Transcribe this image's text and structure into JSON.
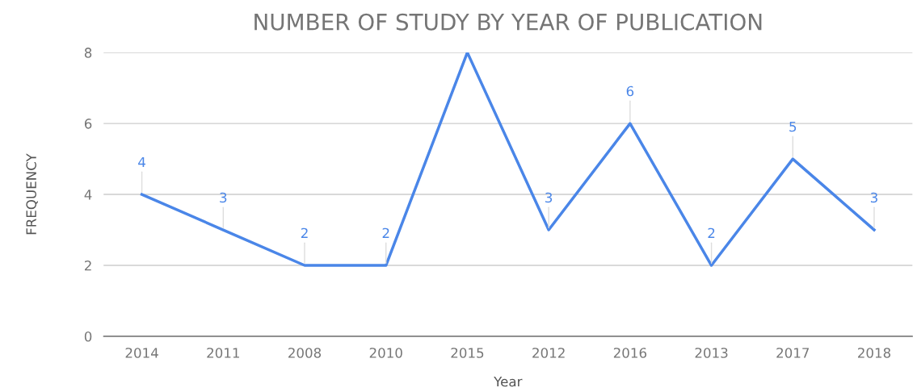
{
  "chart_data": {
    "type": "line",
    "title": "NUMBER OF STUDY BY YEAR OF PUBLICATION",
    "xlabel": "Year",
    "ylabel": "FREQUENCY",
    "categories": [
      "2014",
      "2011",
      "2008",
      "2010",
      "2015",
      "2012",
      "2016",
      "2013",
      "2017",
      "2018"
    ],
    "series": [
      {
        "color": "#4a86e8",
        "values": [
          4,
          3,
          2,
          2,
          8,
          3,
          6,
          2,
          5,
          3
        ],
        "value_labels": [
          "4",
          "3",
          "2",
          "2",
          null,
          "3",
          "6",
          "2",
          "5",
          "3"
        ]
      }
    ],
    "ylim": [
      0,
      8
    ],
    "yticks": [
      0,
      2,
      4,
      6,
      8
    ],
    "grid": "y",
    "legend": false,
    "marker": "none",
    "line_style": "solid"
  }
}
